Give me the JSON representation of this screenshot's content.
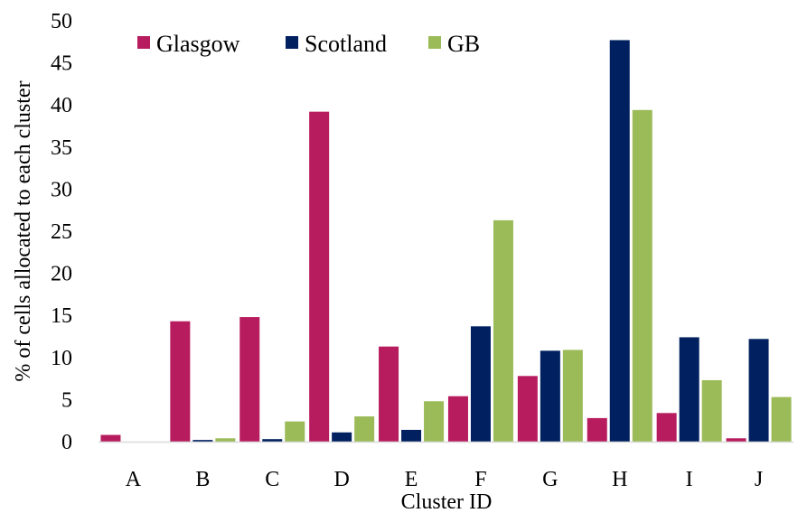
{
  "chart_data": {
    "type": "bar",
    "title": "",
    "xlabel": "Cluster ID",
    "ylabel": "% of cells allocated to each cluster",
    "categories": [
      "A",
      "B",
      "C",
      "D",
      "E",
      "F",
      "G",
      "H",
      "I",
      "J"
    ],
    "ylim": [
      0,
      50
    ],
    "yticks": [
      0,
      5,
      10,
      15,
      20,
      25,
      30,
      35,
      40,
      45,
      50
    ],
    "grid": false,
    "legend_position": "top-left",
    "series": [
      {
        "name": "Glasgow",
        "color": "#b71c5e",
        "values": [
          0.8,
          14.3,
          14.8,
          39.2,
          11.3,
          5.4,
          7.8,
          2.8,
          3.4,
          0.4
        ]
      },
      {
        "name": "Scotland",
        "color": "#002060",
        "values": [
          0,
          0.2,
          0.3,
          1.1,
          1.4,
          13.7,
          10.8,
          47.7,
          12.4,
          12.2
        ]
      },
      {
        "name": "GB",
        "color": "#9bbb59",
        "values": [
          0,
          0.4,
          2.4,
          3.0,
          4.8,
          26.3,
          10.9,
          39.4,
          7.3,
          5.3
        ]
      }
    ]
  }
}
